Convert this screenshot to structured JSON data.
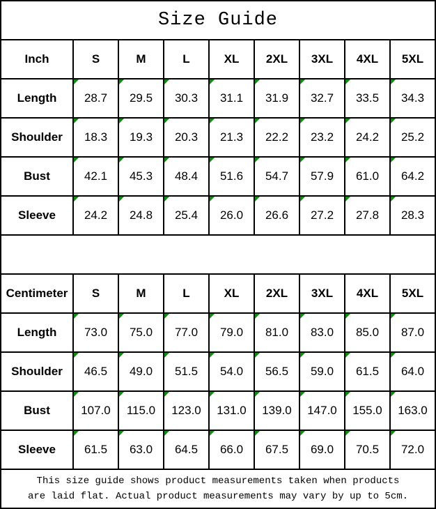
{
  "title": "Size Guide",
  "colors": {
    "border_black": "#000000",
    "triangle_green": "#158815",
    "background": "#ffffff"
  },
  "tables": [
    {
      "unit_label": "Inch",
      "columns": [
        "S",
        "M",
        "L",
        "XL",
        "2XL",
        "3XL",
        "4XL",
        "5XL"
      ],
      "rows": [
        {
          "label": "Length",
          "values": [
            "28.7",
            "29.5",
            "30.3",
            "31.1",
            "31.9",
            "32.7",
            "33.5",
            "34.3"
          ]
        },
        {
          "label": "Shoulder",
          "values": [
            "18.3",
            "19.3",
            "20.3",
            "21.3",
            "22.2",
            "23.2",
            "24.2",
            "25.2"
          ]
        },
        {
          "label": "Bust",
          "values": [
            "42.1",
            "45.3",
            "48.4",
            "51.6",
            "54.7",
            "57.9",
            "61.0",
            "64.2"
          ]
        },
        {
          "label": "Sleeve",
          "values": [
            "24.2",
            "24.8",
            "25.4",
            "26.0",
            "26.6",
            "27.2",
            "27.8",
            "28.3"
          ]
        }
      ]
    },
    {
      "unit_label": "Centimeter",
      "columns": [
        "S",
        "M",
        "L",
        "XL",
        "2XL",
        "3XL",
        "4XL",
        "5XL"
      ],
      "rows": [
        {
          "label": "Length",
          "values": [
            "73.0",
            "75.0",
            "77.0",
            "79.0",
            "81.0",
            "83.0",
            "85.0",
            "87.0"
          ]
        },
        {
          "label": "Shoulder",
          "values": [
            "46.5",
            "49.0",
            "51.5",
            "54.0",
            "56.5",
            "59.0",
            "61.5",
            "64.0"
          ]
        },
        {
          "label": "Bust",
          "values": [
            "107.0",
            "115.0",
            "123.0",
            "131.0",
            "139.0",
            "147.0",
            "155.0",
            "163.0"
          ]
        },
        {
          "label": "Sleeve",
          "values": [
            "61.5",
            "63.0",
            "64.5",
            "66.0",
            "67.5",
            "69.0",
            "70.5",
            "72.0"
          ]
        }
      ]
    }
  ],
  "footer": {
    "line1": "This size guide shows product measurements taken when products",
    "line2": "are laid flat. Actual product measurements may vary by up to 5cm."
  }
}
